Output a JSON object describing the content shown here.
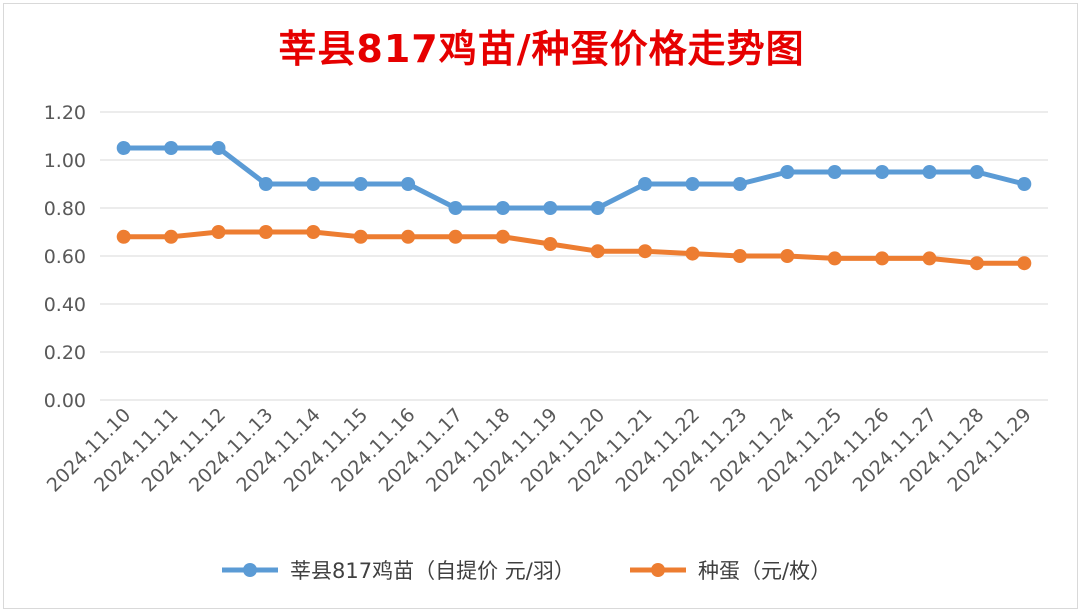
{
  "chart_data": {
    "type": "line",
    "title": "莘县817鸡苗/种蛋价格走势图",
    "categories": [
      "2024.11.10",
      "2024.11.11",
      "2024.11.12",
      "2024.11.13",
      "2024.11.14",
      "2024.11.15",
      "2024.11.16",
      "2024.11.17",
      "2024.11.18",
      "2024.11.19",
      "2024.11.20",
      "2024.11.21",
      "2024.11.22",
      "2024.11.23",
      "2024.11.24",
      "2024.11.25",
      "2024.11.26",
      "2024.11.27",
      "2024.11.28",
      "2024.11.29"
    ],
    "series": [
      {
        "name": "莘县817鸡苗（自提价 元/羽）",
        "color": "#5b9bd5",
        "values": [
          1.05,
          1.05,
          1.05,
          0.9,
          0.9,
          0.9,
          0.9,
          0.8,
          0.8,
          0.8,
          0.8,
          0.9,
          0.9,
          0.9,
          0.95,
          0.95,
          0.95,
          0.95,
          0.95,
          0.9
        ]
      },
      {
        "name": "种蛋（元/枚）",
        "color": "#ed7d31",
        "values": [
          0.68,
          0.68,
          0.7,
          0.7,
          0.7,
          0.68,
          0.68,
          0.68,
          0.68,
          0.65,
          0.62,
          0.62,
          0.61,
          0.6,
          0.6,
          0.59,
          0.59,
          0.59,
          0.57,
          0.57
        ]
      }
    ],
    "ylim": [
      0,
      1.2
    ],
    "yticks": [
      "0.00",
      "0.20",
      "0.40",
      "0.60",
      "0.80",
      "1.00",
      "1.20"
    ],
    "grid": true,
    "legend": "bottom"
  }
}
